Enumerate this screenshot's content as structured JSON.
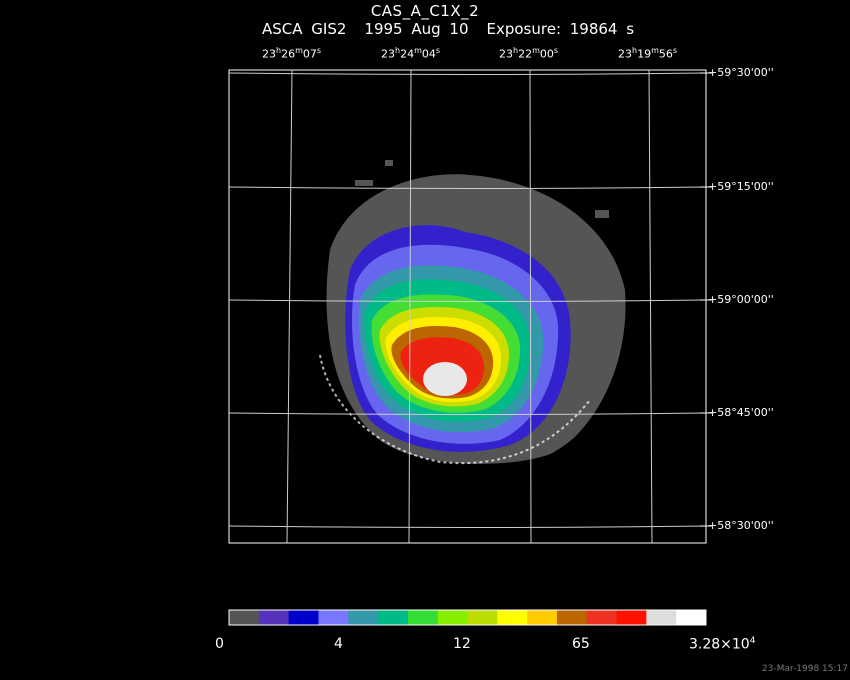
{
  "header": {
    "title": "CAS_A_C1X_2",
    "instrument": "ASCA GIS2",
    "date": "1995 Aug 10",
    "exposure": "Exposure: 19864 s"
  },
  "ra_labels": [
    {
      "h": "23",
      "m": "26",
      "s": "07"
    },
    {
      "h": "23",
      "m": "24",
      "s": "04"
    },
    {
      "h": "23",
      "m": "22",
      "s": "00"
    },
    {
      "h": "23",
      "m": "19",
      "s": "56"
    }
  ],
  "dec_labels": [
    "+59°30'00''",
    "+59°15'00''",
    "+59°00'00''",
    "+58°45'00''",
    "+58°30'00''"
  ],
  "colorbar": {
    "colors": [
      "#555555",
      "#5533bb",
      "#0000cc",
      "#7777ff",
      "#3399aa",
      "#00bb88",
      "#33dd33",
      "#88ee00",
      "#bbdd00",
      "#ffff00",
      "#ffcc00",
      "#bb6600",
      "#ee3322",
      "#ff1100",
      "#dddddd",
      "#ffffff"
    ],
    "tick_labels": [
      "0",
      "4",
      "12",
      "65"
    ],
    "max_mantissa": "3.28×10",
    "max_exponent": "4"
  },
  "footer": {
    "timestamp": "23-Mar-1998 15:17"
  }
}
